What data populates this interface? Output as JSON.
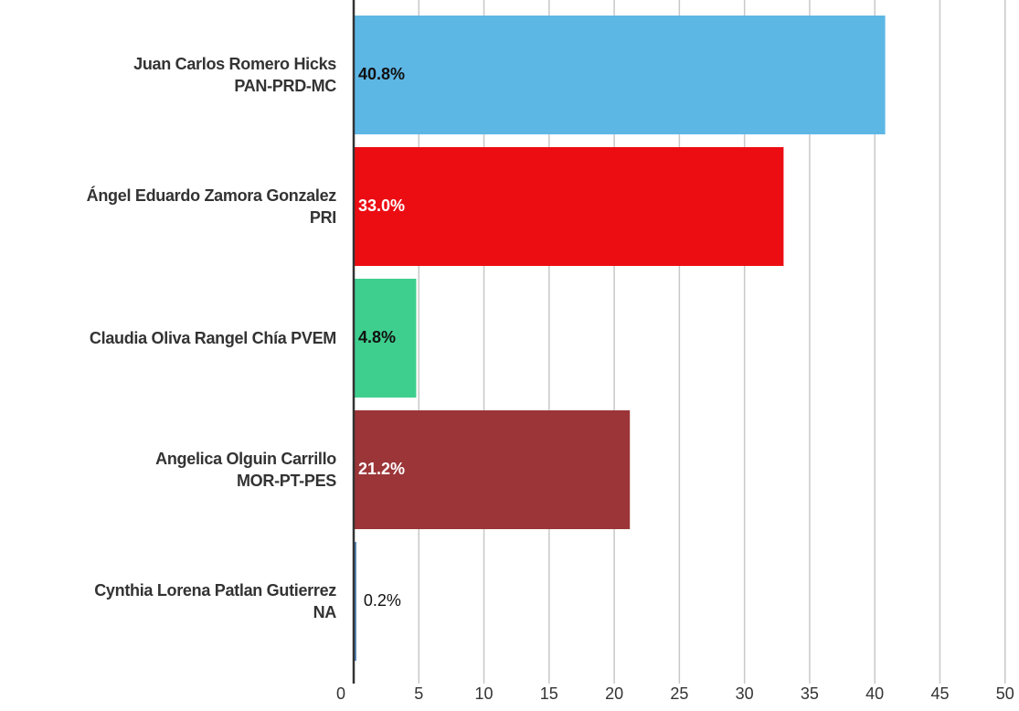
{
  "chart_data": {
    "type": "hbar",
    "categories": [
      "Juan Carlos Romero Hicks\nPAN-PRD-MC",
      "Ángel Eduardo Zamora Gonzalez\nPRI",
      "Claudia Oliva Rangel Chía PVEM",
      "Angelica Olguin Carrillo\nMOR-PT-PES",
      "Cynthia Lorena Patlan Gutierrez\nNA"
    ],
    "values": [
      40.8,
      33.0,
      4.8,
      21.2,
      0.2
    ],
    "value_labels": [
      "40.8%",
      "33.0%",
      "4.8%",
      "21.2%",
      "0.2%"
    ],
    "colors": [
      "#5db7e5",
      "#ec0d13",
      "#3ecf8e",
      "#9b3538",
      "#4a7fb5"
    ],
    "label_colors": [
      "#111111",
      "#ffffff",
      "#111111",
      "#ffffff",
      "#111111"
    ],
    "xlim": [
      0,
      51
    ],
    "xticks": [
      0,
      5,
      10,
      15,
      20,
      25,
      30,
      35,
      40,
      45,
      50
    ],
    "grid": true
  }
}
